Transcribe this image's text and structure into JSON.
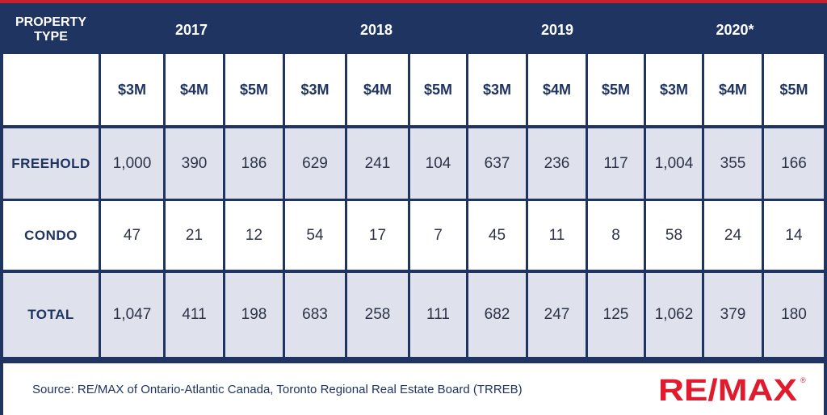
{
  "chart_data": {
    "type": "table",
    "header": {
      "property_type": "PROPERTY TYPE",
      "years": [
        "2017",
        "2018",
        "2019",
        "2020*"
      ]
    },
    "price_points": [
      "$3M",
      "$4M",
      "$5M"
    ],
    "rows": [
      {
        "label": "FREEHOLD",
        "values": [
          "1,000",
          "390",
          "186",
          "629",
          "241",
          "104",
          "637",
          "236",
          "117",
          "1,004",
          "355",
          "166"
        ]
      },
      {
        "label": "CONDO",
        "values": [
          "47",
          "21",
          "12",
          "54",
          "17",
          "7",
          "45",
          "11",
          "8",
          "58",
          "24",
          "14"
        ]
      },
      {
        "label": "TOTAL",
        "values": [
          "1,047",
          "411",
          "198",
          "683",
          "258",
          "111",
          "682",
          "247",
          "125",
          "1,062",
          "379",
          "180"
        ]
      }
    ]
  },
  "footer": {
    "source": "Source: RE/MAX of Ontario-Atlantic Canada, Toronto Regional Real Estate Board (TRREB)",
    "logo_text": "RE/MAX",
    "logo_red": "#e11b2e",
    "logo_blue": "#1f3461"
  },
  "colors": {
    "navy": "#1f3461",
    "shaded_row": "#dfe2ec",
    "top_line": "#c8202f"
  }
}
